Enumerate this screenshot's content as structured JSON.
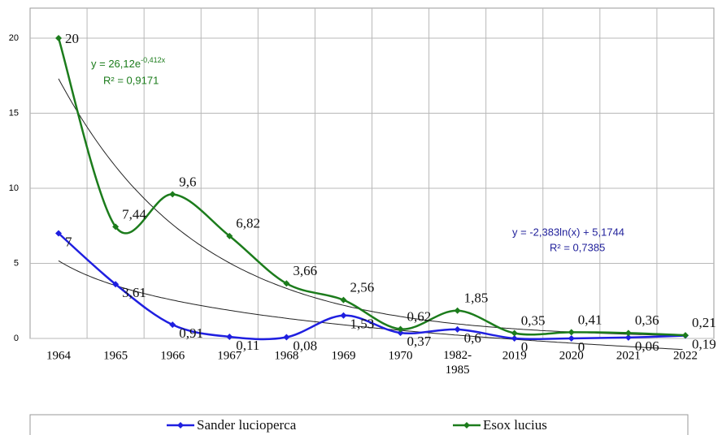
{
  "chart_data": {
    "type": "line",
    "categories": [
      "1964",
      "1965",
      "1966",
      "1967",
      "1968",
      "1969",
      "1970",
      "1982-1985",
      "2019",
      "2020",
      "2021",
      "2022"
    ],
    "series": [
      {
        "name": "Sander lucioperca",
        "color": "#1f1fe0",
        "values": [
          7,
          3.61,
          0.91,
          0.11,
          0.08,
          1.53,
          0.37,
          0.6,
          0,
          0,
          0.06,
          0.19
        ],
        "value_labels": [
          "7",
          "3,61",
          "0,91",
          "0,11",
          "0,08",
          "1,53",
          "0,37",
          "0,6",
          "0",
          "0",
          "0,06",
          "0,19"
        ]
      },
      {
        "name": "Esox lucius",
        "color": "#1c7c1c",
        "values": [
          20,
          7.44,
          9.6,
          6.82,
          3.66,
          2.56,
          0.62,
          1.85,
          0.35,
          0.41,
          0.36,
          0.21
        ],
        "value_labels": [
          "20",
          "7,44",
          "9,6",
          "6,82",
          "3,66",
          "2,56",
          "0,62",
          "1,85",
          "0,35",
          "0,41",
          "0,36",
          "0,21"
        ]
      }
    ],
    "trendlines": [
      {
        "kind": "exponential",
        "a": 26.12,
        "b": -0.412,
        "color": "#1c7c1c",
        "equation": "y = 26,12e",
        "exponent": "-0,412x",
        "r2": "R² = 0,9171"
      },
      {
        "kind": "logarithmic",
        "a": -2.383,
        "b": 5.1744,
        "color": "#1f1f9a",
        "equation": "y = -2,383ln(x) + 5,1744",
        "r2": "R² = 0,7385"
      }
    ],
    "ylim": [
      0,
      22
    ],
    "yticks": [
      0,
      5,
      10,
      15,
      20
    ],
    "grid": true,
    "legend": "bottom"
  }
}
